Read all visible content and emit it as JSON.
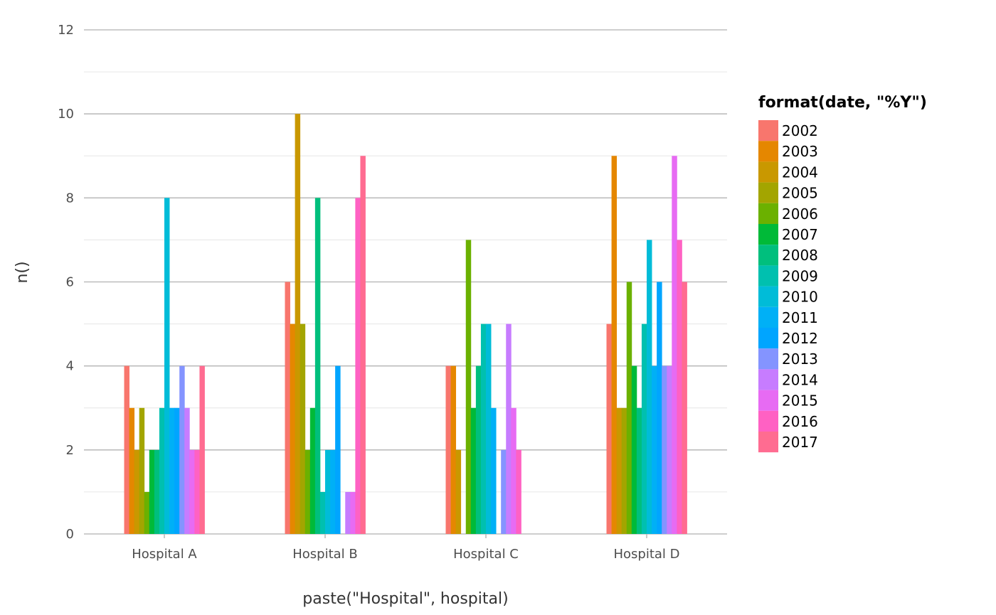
{
  "chart_data": {
    "type": "bar",
    "xlabel": "paste(\"Hospital\", hospital)",
    "ylabel": "n()",
    "ylim": [
      0,
      12
    ],
    "y_ticks": [
      "0",
      "2",
      "4",
      "6",
      "8",
      "10",
      "12"
    ],
    "grid": true,
    "legend_position": "right",
    "legend_title": "format(date, \"%Y\")",
    "categories": [
      "Hospital A",
      "Hospital B",
      "Hospital C",
      "Hospital D"
    ],
    "series": [
      {
        "name": "2002",
        "color": "#F8766D",
        "values": [
          4,
          6,
          4,
          5
        ]
      },
      {
        "name": "2003",
        "color": "#E58700",
        "values": [
          3,
          5,
          4,
          9
        ]
      },
      {
        "name": "2004",
        "color": "#C99800",
        "values": [
          2,
          10,
          2,
          3
        ]
      },
      {
        "name": "2005",
        "color": "#A3A500",
        "values": [
          3,
          5,
          null,
          3
        ]
      },
      {
        "name": "2006",
        "color": "#6BB100",
        "values": [
          1,
          2,
          7,
          6
        ]
      },
      {
        "name": "2007",
        "color": "#00BA38",
        "values": [
          2,
          3,
          3,
          4
        ]
      },
      {
        "name": "2008",
        "color": "#00BF7D",
        "values": [
          2,
          8,
          4,
          3
        ]
      },
      {
        "name": "2009",
        "color": "#00C0AF",
        "values": [
          3,
          1,
          5,
          5
        ]
      },
      {
        "name": "2010",
        "color": "#00BCD8",
        "values": [
          8,
          2,
          5,
          7
        ]
      },
      {
        "name": "2011",
        "color": "#00B0F6",
        "values": [
          3,
          2,
          3,
          4
        ]
      },
      {
        "name": "2012",
        "color": "#619CFF",
        "values": [
          3,
          4,
          null,
          6
        ]
      },
      {
        "name": "2013",
        "color": "#B983FF",
        "values": [
          4,
          null,
          2,
          4
        ]
      },
      {
        "name": "2014",
        "color": "#E76BF3",
        "values": [
          3,
          1,
          5,
          4
        ]
      },
      {
        "name": "2015",
        "color": "#FD61D1",
        "values": [
          2,
          1,
          3,
          9
        ]
      },
      {
        "name": "2016",
        "color": "#FF67A4",
        "values": [
          2,
          8,
          2,
          7
        ]
      },
      {
        "name": "2017",
        "color": "#FF6C91",
        "values": [
          4,
          9,
          null,
          6
        ]
      }
    ]
  },
  "legend_colors": [
    "#F8766D",
    "#E58700",
    "#C99800",
    "#A3A500",
    "#6BB100",
    "#00BA38",
    "#00BF7D",
    "#00C0AF",
    "#00BCD8",
    "#00B0F6",
    "#00A5FF",
    "#8494FF",
    "#C77CFF",
    "#E76BF3",
    "#FF61C3",
    "#FF6C91"
  ],
  "bar_colors": [
    "#F8766D",
    "#E58700",
    "#C99800",
    "#A3A500",
    "#6BB100",
    "#00BA38",
    "#00BF7D",
    "#00C0AF",
    "#00BCD8",
    "#00B0F6",
    "#00A5FF",
    "#8494FF",
    "#C77CFF",
    "#E76BF3",
    "#FF61C3",
    "#FF6C91"
  ]
}
